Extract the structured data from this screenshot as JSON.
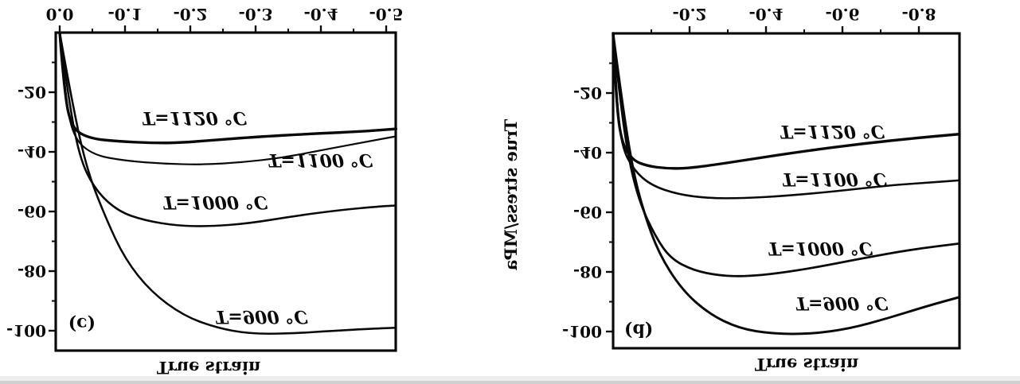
{
  "figure": {
    "kind": "scanned journal figure, vertically mirrored (upside-down) scan",
    "background": "#ffffff",
    "ink_color": "#161616",
    "paper_edge_colors": [
      "#c7c7c7",
      "#e2e2e2"
    ]
  },
  "chart_data": [
    {
      "type": "line",
      "panel_label": "(c)",
      "title": "",
      "xlabel": "True strain",
      "ylabel": "",
      "xlim": [
        0,
        -0.52
      ],
      "ylim": [
        0,
        -107
      ],
      "grid": false,
      "legend_position": "inline-curve-labels",
      "x_ticks": [
        0,
        -0.1,
        -0.2,
        -0.3,
        -0.4,
        -0.5
      ],
      "x_tick_labels": [
        "0.0",
        "-0.1",
        "-0.2",
        "-0.3",
        "-0.4",
        "-0.5"
      ],
      "x_minor_ticks": [
        -0.05,
        -0.15,
        -0.25,
        -0.35,
        -0.45
      ],
      "y_ticks": [
        -20,
        -40,
        -60,
        -80,
        -100
      ],
      "y_tick_labels": [
        "-20",
        "-40",
        "-60",
        "-80",
        "-100"
      ],
      "y_minor_ticks": [
        -10,
        -30,
        -50,
        -70,
        -90
      ],
      "panel_label_pos": {
        "x": -0.034,
        "y": -97.9
      },
      "series": [
        {
          "name": "T=900 °C",
          "line_width": 2.6,
          "label": {
            "text": "T=900 °C",
            "x": -0.309,
            "y": -95.5
          },
          "points": [
            [
              0,
              0
            ],
            [
              -0.016,
              -20
            ],
            [
              -0.04,
              -45
            ],
            [
              -0.07,
              -62
            ],
            [
              -0.1,
              -76
            ],
            [
              -0.14,
              -87
            ],
            [
              -0.19,
              -95
            ],
            [
              -0.24,
              -99
            ],
            [
              -0.29,
              -101
            ],
            [
              -0.35,
              -101
            ],
            [
              -0.42,
              -100
            ],
            [
              -0.48,
              -99.3
            ],
            [
              -0.515,
              -99
            ]
          ]
        },
        {
          "name": "T=1000 °C",
          "line_width": 2.6,
          "label": {
            "text": "T=1000 °C",
            "x": -0.238,
            "y": -57.1
          },
          "points": [
            [
              0,
              0
            ],
            [
              -0.012,
              -20
            ],
            [
              -0.03,
              -42
            ],
            [
              -0.055,
              -53
            ],
            [
              -0.09,
              -60
            ],
            [
              -0.13,
              -63
            ],
            [
              -0.18,
              -64.8
            ],
            [
              -0.23,
              -65
            ],
            [
              -0.29,
              -64
            ],
            [
              -0.36,
              -61.5
            ],
            [
              -0.43,
              -59.5
            ],
            [
              -0.49,
              -58.3
            ],
            [
              -0.515,
              -58
            ]
          ]
        },
        {
          "name": "T=1100 °C",
          "line_width": 2.2,
          "label": {
            "text": "T=1100 °C",
            "x": -0.399,
            "y": -42.9
          },
          "points": [
            [
              0,
              0
            ],
            [
              -0.008,
              -20
            ],
            [
              -0.02,
              -35
            ],
            [
              -0.05,
              -41
            ],
            [
              -0.1,
              -43
            ],
            [
              -0.16,
              -44
            ],
            [
              -0.22,
              -44.3
            ],
            [
              -0.28,
              -43.5
            ],
            [
              -0.34,
              -42
            ],
            [
              -0.4,
              -39.5
            ],
            [
              -0.46,
              -37
            ],
            [
              -0.515,
              -34.8
            ]
          ]
        },
        {
          "name": "T=1120 °C",
          "line_width": 3.4,
          "label": {
            "text": "T=1120 °C",
            "x": -0.206,
            "y": -28.8
          },
          "points": [
            [
              0,
              0
            ],
            [
              -0.007,
              -20
            ],
            [
              -0.018,
              -32
            ],
            [
              -0.045,
              -35.5
            ],
            [
              -0.09,
              -36.5
            ],
            [
              -0.14,
              -37
            ],
            [
              -0.18,
              -37
            ],
            [
              -0.24,
              -36
            ],
            [
              -0.3,
              -35
            ],
            [
              -0.38,
              -34
            ],
            [
              -0.46,
              -33.2
            ],
            [
              -0.515,
              -32.3
            ]
          ]
        }
      ]
    },
    {
      "type": "line",
      "panel_label": "(d)",
      "title": "",
      "xlabel": "True strain",
      "ylabel": "True stress/MPa",
      "xlim": [
        0,
        -0.91
      ],
      "ylim": [
        0,
        -106
      ],
      "grid": false,
      "legend_position": "inline-curve-labels",
      "x_ticks": [
        -0.2,
        -0.4,
        -0.6,
        -0.8
      ],
      "x_tick_labels": [
        "-0.2",
        "-0.4",
        "-0.6",
        "-0.8"
      ],
      "x_minor_ticks": [
        -0.1,
        -0.3,
        -0.5,
        -0.7
      ],
      "y_ticks": [
        -20,
        -40,
        -60,
        -80,
        -100
      ],
      "y_tick_labels": [
        "-20",
        "-40",
        "-60",
        "-80",
        "-100"
      ],
      "y_minor_ticks": [
        -10,
        -30,
        -50,
        -70,
        -90
      ],
      "panel_label_pos": {
        "x": -0.067,
        "y": -99.7
      },
      "series": [
        {
          "name": "T=900 °C",
          "line_width": 3.0,
          "label": {
            "text": "T=900 °C",
            "x": -0.598,
            "y": -90.7
          },
          "points": [
            [
              0,
              0
            ],
            [
              -0.02,
              -20
            ],
            [
              -0.05,
              -45
            ],
            [
              -0.08,
              -60
            ],
            [
              -0.12,
              -74
            ],
            [
              -0.18,
              -86
            ],
            [
              -0.25,
              -94
            ],
            [
              -0.33,
              -99
            ],
            [
              -0.42,
              -100.8
            ],
            [
              -0.52,
              -100.8
            ],
            [
              -0.62,
              -99
            ],
            [
              -0.72,
              -95.5
            ],
            [
              -0.82,
              -91.5
            ],
            [
              -0.905,
              -88.5
            ]
          ]
        },
        {
          "name": "T=1000 °C",
          "line_width": 2.8,
          "label": {
            "text": "T=1000 °C",
            "x": -0.542,
            "y": -72.3
          },
          "points": [
            [
              0,
              0
            ],
            [
              -0.016,
              -20
            ],
            [
              -0.04,
              -42
            ],
            [
              -0.07,
              -57
            ],
            [
              -0.11,
              -68
            ],
            [
              -0.15,
              -75.5
            ],
            [
              -0.21,
              -79.5
            ],
            [
              -0.28,
              -81.3
            ],
            [
              -0.35,
              -81.5
            ],
            [
              -0.43,
              -80.5
            ],
            [
              -0.53,
              -78.5
            ],
            [
              -0.65,
              -75.5
            ],
            [
              -0.78,
              -72.5
            ],
            [
              -0.905,
              -70.5
            ]
          ]
        },
        {
          "name": "T=1100 °C",
          "line_width": 2.6,
          "label": {
            "text": "T=1100 °C",
            "x": -0.579,
            "y": -49.1
          },
          "points": [
            [
              0,
              0
            ],
            [
              -0.008,
              -20
            ],
            [
              -0.022,
              -38
            ],
            [
              -0.055,
              -46
            ],
            [
              -0.1,
              -51
            ],
            [
              -0.17,
              -54
            ],
            [
              -0.25,
              -55.3
            ],
            [
              -0.34,
              -55.3
            ],
            [
              -0.45,
              -54.5
            ],
            [
              -0.58,
              -53
            ],
            [
              -0.72,
              -51
            ],
            [
              -0.83,
              -50
            ],
            [
              -0.905,
              -49.3
            ]
          ]
        },
        {
          "name": "T=1120 °C",
          "line_width": 3.4,
          "label": {
            "text": "T=1120 °C",
            "x": -0.573,
            "y": -33.1
          },
          "points": [
            [
              0,
              0
            ],
            [
              -0.007,
              -20
            ],
            [
              -0.02,
              -36
            ],
            [
              -0.05,
              -42.5
            ],
            [
              -0.09,
              -44.5
            ],
            [
              -0.14,
              -45.3
            ],
            [
              -0.19,
              -45.3
            ],
            [
              -0.27,
              -44
            ],
            [
              -0.37,
              -42
            ],
            [
              -0.5,
              -39.5
            ],
            [
              -0.65,
              -37
            ],
            [
              -0.8,
              -35
            ],
            [
              -0.905,
              -33.8
            ]
          ]
        }
      ]
    }
  ]
}
